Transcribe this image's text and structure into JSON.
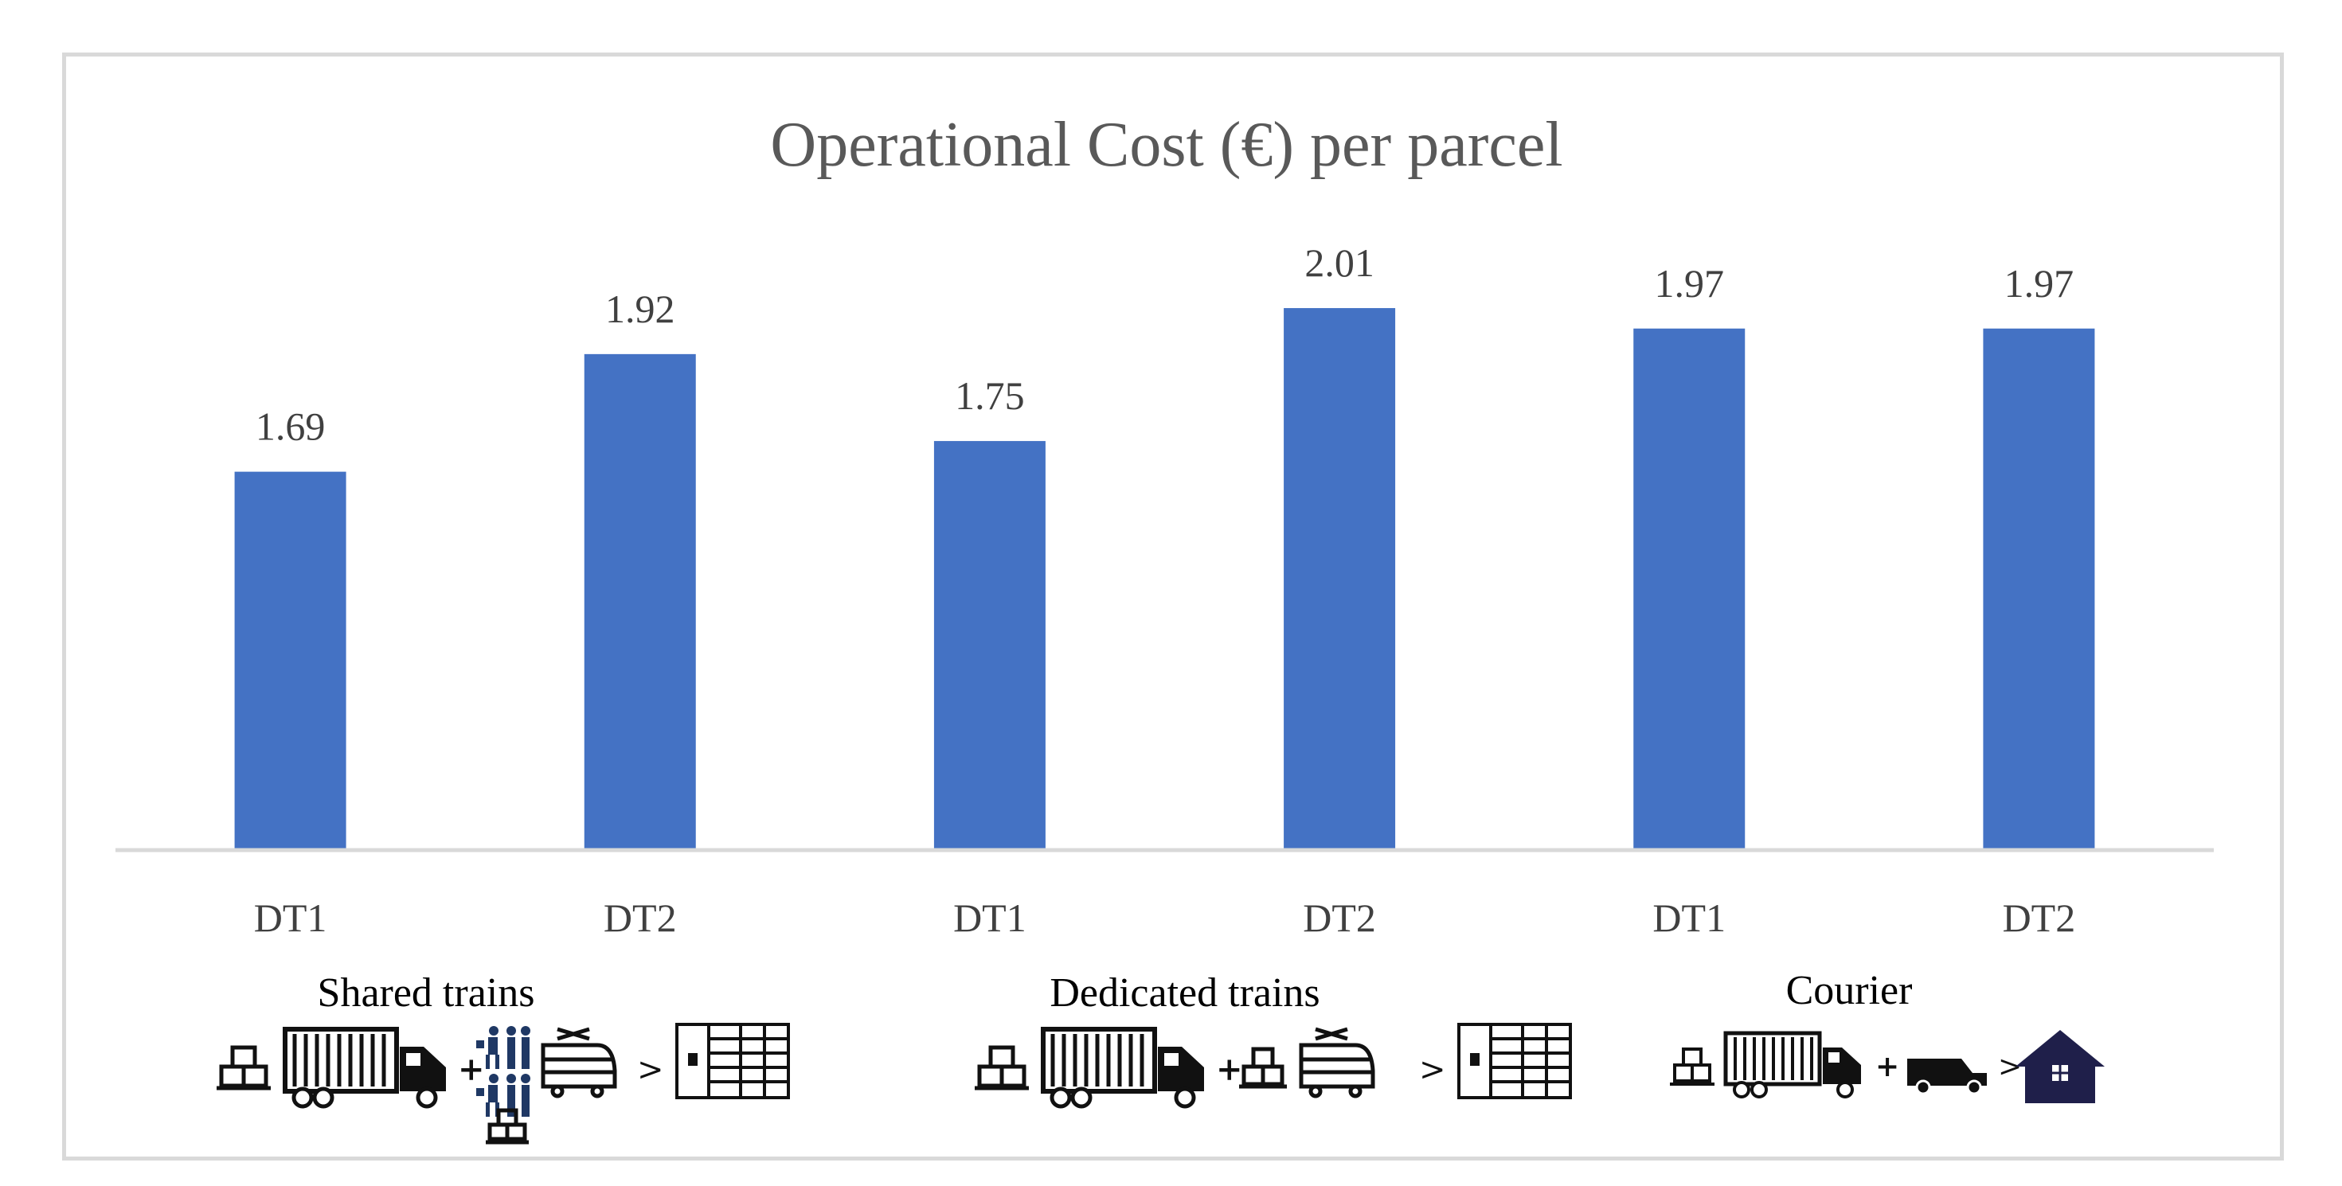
{
  "chart_data": {
    "type": "bar",
    "title": "Operational Cost (€) per parcel",
    "categories": [
      "DT1",
      "DT2",
      "DT1",
      "DT2",
      "DT1",
      "DT2"
    ],
    "values": [
      1.69,
      1.92,
      1.75,
      2.01,
      1.97,
      1.97
    ],
    "value_labels": [
      "1.69",
      "1.92",
      "1.75",
      "2.01",
      "1.97",
      "1.97"
    ],
    "groups": [
      {
        "label": "Shared trains",
        "categories": [
          0,
          1
        ]
      },
      {
        "label": "Dedicated trains",
        "categories": [
          2,
          3
        ]
      },
      {
        "label": "Courier",
        "categories": [
          4,
          5
        ]
      }
    ],
    "ylim": [
      0.95,
      2.2
    ],
    "grid": false,
    "xlabel": "",
    "ylabel": ""
  },
  "colors": {
    "bar": "#4472c4",
    "axis": "#d9d9d9",
    "title": "#595959",
    "labels": "#404040",
    "icon": "#111111",
    "house": "#1f1f4a"
  },
  "group_icons": [
    [
      "boxes-icon",
      "truck-icon",
      "plus-icon",
      "walkers-icon",
      "tram-icon",
      "greater-than-icon",
      "locker-icon"
    ],
    [
      "boxes-icon",
      "truck-icon",
      "plus-icon",
      "boxes-icon",
      "tram-icon",
      "greater-than-icon",
      "locker-icon"
    ],
    [
      "boxes-icon",
      "truck-icon",
      "plus-icon",
      "van-icon",
      "greater-than-icon",
      "house-icon"
    ]
  ]
}
